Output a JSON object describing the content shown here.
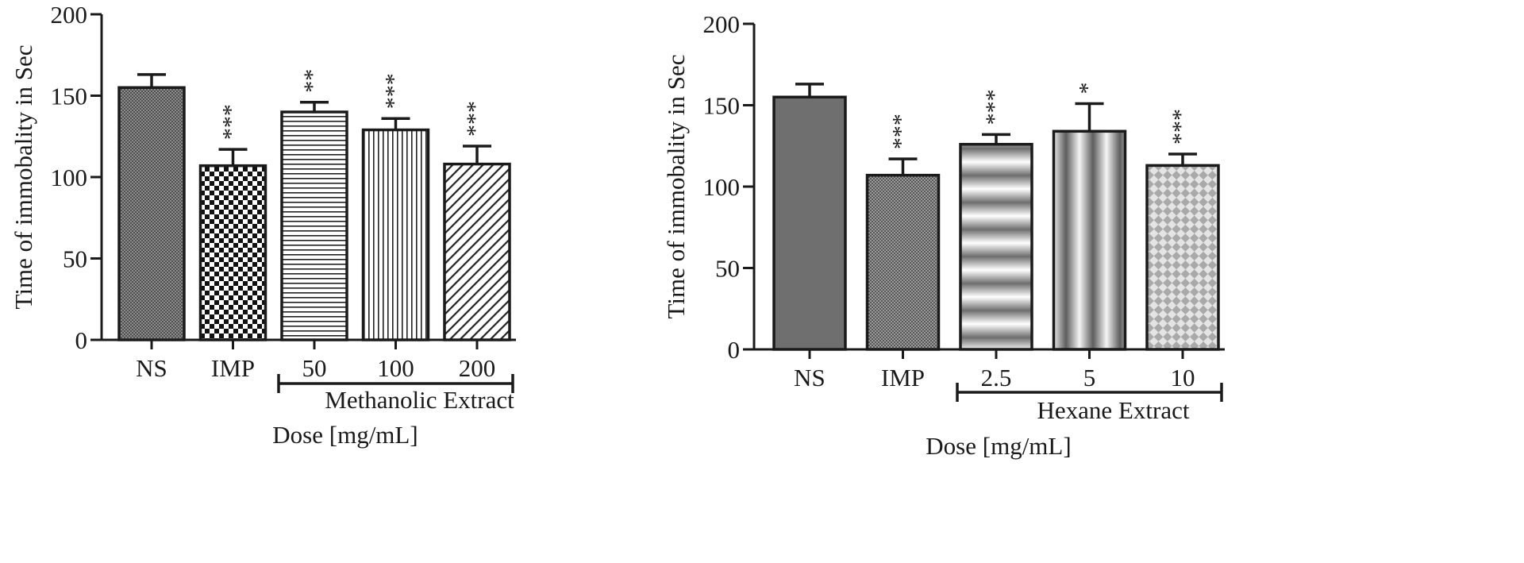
{
  "chart_data": [
    {
      "type": "bar",
      "title": "",
      "ylabel": "Time of immobality in Sec",
      "xlabel": "Dose [mg/mL]",
      "ylim": [
        0,
        200
      ],
      "yticks": [
        0,
        50,
        100,
        150,
        200
      ],
      "categories": [
        "NS",
        "IMP",
        "50",
        "100",
        "200"
      ],
      "values": [
        155,
        107,
        140,
        129,
        108
      ],
      "errors": [
        8,
        10,
        6,
        7,
        11
      ],
      "significance": [
        "",
        "***",
        "**",
        "***",
        "***"
      ],
      "fill_patterns": [
        "dense-dots",
        "checkerboard",
        "horizontal-lines",
        "vertical-lines",
        "diagonal-lines"
      ],
      "group_bracket": {
        "label": "Methanolic Extract",
        "from": "50",
        "to": "200"
      },
      "grid": false
    },
    {
      "type": "bar",
      "title": "",
      "ylabel": "Time of immobality in Sec",
      "xlabel": "Dose [mg/mL]",
      "ylim": [
        0,
        200
      ],
      "yticks": [
        0,
        50,
        100,
        150,
        200
      ],
      "categories": [
        "NS",
        "IMP",
        "2.5",
        "5",
        "10"
      ],
      "values": [
        155,
        107,
        126,
        134,
        113
      ],
      "errors": [
        8,
        10,
        6,
        17,
        7
      ],
      "significance": [
        "",
        "***",
        "***",
        "*",
        "***"
      ],
      "fill_patterns": [
        "solid-gray",
        "fine-dots",
        "horizontal-gradient-bands",
        "vertical-gradient-bands",
        "diamond-grid"
      ],
      "group_bracket": {
        "label": "Hexane Extract",
        "from": "2.5",
        "to": "10"
      },
      "grid": false
    }
  ]
}
